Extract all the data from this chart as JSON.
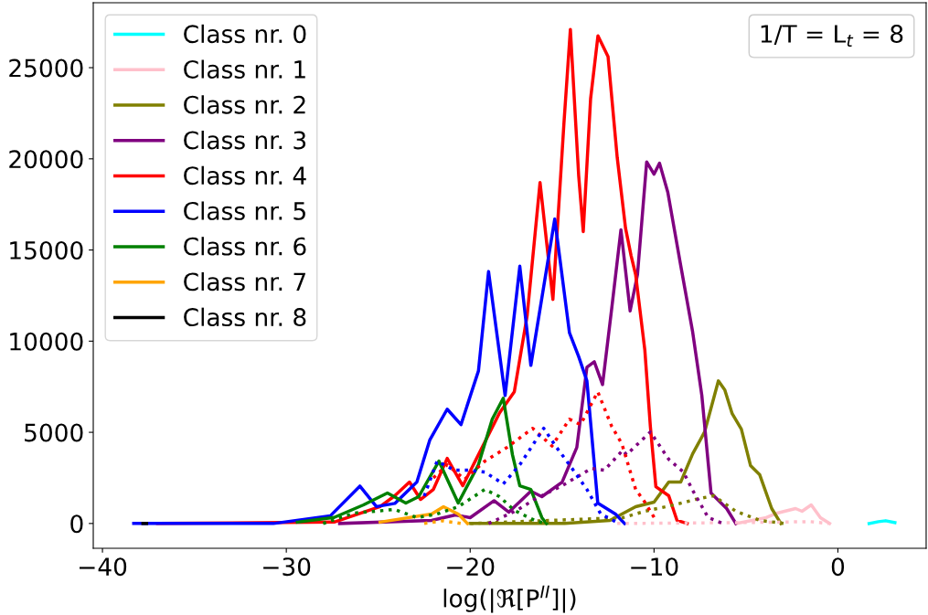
{
  "chart_data": {
    "type": "line",
    "xlabel": "log(|ℜ[P$^{II}$]|)",
    "annotations": [
      "1/T = L$_{t}$ = 8"
    ],
    "xlim": [
      -40.5,
      4.8
    ],
    "ylim": [
      -1360,
      28560
    ],
    "xticks": [
      -40,
      -30,
      -20,
      -10,
      0
    ],
    "yticks": [
      0,
      5000,
      10000,
      15000,
      20000,
      25000
    ],
    "legend": "top left",
    "grid": false,
    "series": [
      {
        "name": "Class nr. 0",
        "color": "#00ffff",
        "x": [
          1.7,
          2.2,
          2.6,
          3.1
        ],
        "values": [
          0,
          100,
          150,
          50
        ]
      },
      {
        "name": "Class nr. 1",
        "color": "#ffc0cb",
        "x": [
          -5.55,
          -3.9,
          -3.3,
          -2.3,
          -1.95,
          -1.45,
          -0.95,
          -0.45
        ],
        "values": [
          0,
          320,
          570,
          820,
          670,
          1020,
          320,
          0
        ]
      },
      {
        "name": "Class nr. 2",
        "color": "#808000",
        "x": [
          -20,
          -14.85,
          -12.4,
          -11.0,
          -10.0,
          -9.2,
          -8.55,
          -7.9,
          -7.25,
          -6.5,
          -6.15,
          -5.75,
          -5.25,
          -4.75,
          -4.25,
          -3.6,
          -3.1
        ],
        "values": [
          0,
          0,
          170,
          920,
          1170,
          2270,
          2270,
          3820,
          5020,
          7820,
          7320,
          6020,
          5170,
          3170,
          2670,
          820,
          0
        ]
      },
      {
        "name": "Class nr. 3",
        "color": "#800080",
        "x": [
          -27.1,
          -22.1,
          -20.8,
          -20.0,
          -18.7,
          -17.9,
          -16.7,
          -16.1,
          -15.0,
          -14.2,
          -13.65,
          -13.25,
          -12.8,
          -12.3,
          -11.8,
          -11.3,
          -10.9,
          -10.4,
          -10.0,
          -9.7,
          -9.25,
          -8.55,
          -7.9,
          -7.4,
          -6.9,
          -6.05,
          -5.55
        ],
        "values": [
          0,
          170,
          470,
          320,
          1250,
          620,
          1770,
          1470,
          2270,
          4170,
          8570,
          8870,
          7620,
          11810,
          16110,
          11660,
          13650,
          19830,
          19160,
          19760,
          18160,
          14160,
          10510,
          7020,
          1670,
          820,
          0
        ]
      },
      {
        "name": "Class nr. 4",
        "color": "#ff0000",
        "x": [
          -37,
          -27.4,
          -24.9,
          -24.1,
          -23.3,
          -22.7,
          -22.0,
          -21.25,
          -20.4,
          -19.55,
          -18.4,
          -17.6,
          -16.9,
          -16.2,
          -15.5,
          -14.9,
          -14.55,
          -14.1,
          -13.85,
          -13.45,
          -13.05,
          -12.5,
          -12.0,
          -11.55,
          -11.25,
          -11.0,
          -10.5,
          -10.2,
          -9.9,
          -9.2,
          -8.75,
          -8.2
        ],
        "values": [
          0,
          75,
          925,
          1520,
          2270,
          1320,
          1870,
          3570,
          2070,
          3770,
          6070,
          7220,
          11410,
          18700,
          12290,
          21950,
          27100,
          19100,
          16010,
          23300,
          26750,
          25600,
          20050,
          16200,
          14700,
          13650,
          9510,
          5320,
          2020,
          1520,
          170,
          0
        ]
      },
      {
        "name": "Class nr. 5",
        "color": "#0000ff",
        "x": [
          -38.3,
          -30.7,
          -27.6,
          -26.0,
          -25.1,
          -24.1,
          -22.9,
          -22.2,
          -21.25,
          -20.5,
          -19.55,
          -19.0,
          -18.1,
          -17.3,
          -16.7,
          -15.4,
          -14.6,
          -14.1,
          -13.65,
          -13.06,
          -12.1,
          -11.6
        ],
        "values": [
          0,
          0,
          425,
          2050,
          925,
          1100,
          2270,
          4570,
          6270,
          5420,
          8370,
          13820,
          7020,
          14110,
          8670,
          16700,
          10460,
          9160,
          7820,
          1120,
          520,
          0
        ]
      },
      {
        "name": "Class nr. 6",
        "color": "#008000",
        "x": [
          -29.4,
          -27.4,
          -25.8,
          -24.5,
          -23.5,
          -22.8,
          -21.7,
          -20.65,
          -19.55,
          -18.8,
          -18.2,
          -17.7,
          -17.3,
          -16.7,
          -16.1,
          -15.85
        ],
        "values": [
          75,
          330,
          1020,
          1670,
          1120,
          1470,
          3420,
          1120,
          3220,
          5720,
          6870,
          3770,
          2070,
          1870,
          320,
          0
        ]
      },
      {
        "name": "Class nr. 7",
        "color": "#ffa500",
        "x": [
          -24.9,
          -22.1,
          -21.45,
          -20.65,
          -20.15
        ],
        "values": [
          75,
          520,
          920,
          520,
          0
        ]
      },
      {
        "name": "Class nr. 8",
        "color": "#000000",
        "x": [
          -37.8,
          -37.6
        ],
        "values": [
          0,
          0
        ]
      },
      {
        "color": "#ffc0cb",
        "line_style": "dotted",
        "x": [
          -12,
          -5,
          -1.5,
          -0.5
        ],
        "values": [
          0,
          50,
          100,
          0
        ]
      },
      {
        "color": "#808000",
        "line_style": "dotted",
        "x": [
          -20,
          -11.7,
          -10.5,
          -8.9,
          -7.75,
          -6.75,
          -5.55,
          -4.25,
          -2.9
        ],
        "values": [
          0,
          320,
          670,
          1020,
          1320,
          1520,
          670,
          170,
          0
        ]
      },
      {
        "color": "#800080",
        "line_style": "dotted",
        "x": [
          -19,
          -17.5,
          -16.5,
          -15.0,
          -13.4,
          -12.7,
          -11.7,
          -11.5,
          -10.2,
          -9.2,
          -8.4,
          -7.9,
          -7.05,
          -6.25
        ],
        "values": [
          0,
          700,
          1320,
          2070,
          3020,
          2920,
          4020,
          3770,
          5020,
          3520,
          2820,
          1820,
          320,
          0
        ]
      },
      {
        "color": "#ff0000",
        "line_style": "dotted",
        "x": [
          -22.0,
          -21.25,
          -20.3,
          -19.2,
          -18.0,
          -16.6,
          -15.55,
          -14.6,
          -14.0,
          -13.06,
          -12.3,
          -11.75,
          -11.0,
          -10.5,
          -9.9
        ],
        "values": [
          2500,
          3220,
          2420,
          3420,
          4170,
          5220,
          4250,
          5720,
          5420,
          7220,
          5320,
          4370,
          1870,
          1170,
          170
        ]
      },
      {
        "color": "#0000ff",
        "line_style": "dotted",
        "x": [
          -22.5,
          -21.8,
          -20.85,
          -20.1,
          -19.2,
          -18.2,
          -17.3,
          -16.0,
          -15.3,
          -14.6,
          -13.65,
          -12.9,
          -11.9
        ],
        "values": [
          1500,
          3420,
          2920,
          2920,
          2820,
          2170,
          3220,
          5220,
          4170,
          3220,
          1870,
          520,
          0
        ]
      },
      {
        "color": "#008000",
        "line_style": "dotted",
        "x": [
          -28,
          -26.3,
          -24.1,
          -22.9,
          -21.8,
          -20.65,
          -19.2,
          -18.4,
          -17.6,
          -16.5,
          -15.9
        ],
        "values": [
          0,
          570,
          770,
          320,
          520,
          920,
          1870,
          1470,
          720,
          170,
          0
        ]
      },
      {
        "color": "#ffa500",
        "line_style": "dotted",
        "x": [
          -22.5,
          -21.5,
          -20.5
        ],
        "values": [
          0,
          150,
          0
        ]
      }
    ]
  }
}
